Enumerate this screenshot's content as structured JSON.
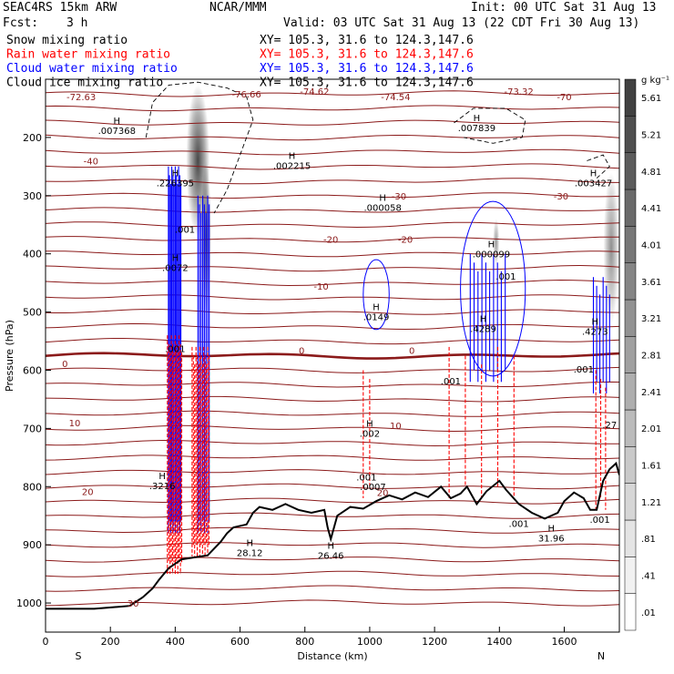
{
  "header": {
    "model": "SEAC4RS 15km ARW",
    "center": "NCAR/MMM",
    "init": "Init: 00 UTC Sat 31 Aug 13",
    "fcst_label": "Fcst:",
    "fcst_value": "3 h",
    "valid": "Valid: 03 UTC Sat 31 Aug 13 (22 CDT Fri 30 Aug 13)",
    "legend": [
      {
        "name": "Snow mixing ratio",
        "color": "#000000",
        "xy": "XY= 105.3, 31.6 to 124.3,147.6"
      },
      {
        "name": "Rain water mixing ratio",
        "color": "#ff0000",
        "xy": "XY= 105.3, 31.6 to 124.3,147.6"
      },
      {
        "name": "Cloud water mixing ratio",
        "color": "#0000ff",
        "xy": "XY= 105.3, 31.6 to 124.3,147.6"
      },
      {
        "name": "Cloud ice mixing ratio",
        "color": "#000000",
        "xy": "XY= 105.3, 31.6 to 124.3,147.6"
      }
    ]
  },
  "chart_data": {
    "type": "cross-section",
    "xlabel": "Distance (km)",
    "ylabel": "Pressure (hPa)",
    "xlim": [
      0,
      1770
    ],
    "ylim": [
      1050,
      100
    ],
    "x_ticks": [
      0,
      200,
      400,
      600,
      800,
      1000,
      1200,
      1400,
      1600
    ],
    "y_ticks": [
      200,
      300,
      400,
      500,
      600,
      700,
      800,
      900,
      1000
    ],
    "x_end_labels": {
      "left": "S",
      "right": "N"
    },
    "colorbar": {
      "unit": "g kg⁻¹",
      "ticks": [
        ".01",
        ".41",
        ".81",
        "1.21",
        "1.61",
        "2.01",
        "2.41",
        "2.81",
        "3.21",
        "3.61",
        "4.01",
        "4.41",
        "4.81",
        "5.21",
        "5.61"
      ]
    },
    "terrain": [
      [
        0,
        1010
      ],
      [
        150,
        1010
      ],
      [
        260,
        1005
      ],
      [
        300,
        990
      ],
      [
        330,
        975
      ],
      [
        350,
        960
      ],
      [
        380,
        940
      ],
      [
        420,
        925
      ],
      [
        500,
        918
      ],
      [
        540,
        895
      ],
      [
        560,
        880
      ],
      [
        580,
        870
      ],
      [
        620,
        865
      ],
      [
        640,
        845
      ],
      [
        660,
        835
      ],
      [
        700,
        840
      ],
      [
        740,
        830
      ],
      [
        780,
        840
      ],
      [
        820,
        845
      ],
      [
        860,
        840
      ],
      [
        870,
        870
      ],
      [
        880,
        890
      ],
      [
        900,
        850
      ],
      [
        940,
        835
      ],
      [
        980,
        838
      ],
      [
        1020,
        825
      ],
      [
        1060,
        815
      ],
      [
        1100,
        822
      ],
      [
        1140,
        810
      ],
      [
        1180,
        818
      ],
      [
        1220,
        800
      ],
      [
        1250,
        820
      ],
      [
        1280,
        812
      ],
      [
        1300,
        800
      ],
      [
        1330,
        830
      ],
      [
        1360,
        808
      ],
      [
        1400,
        790
      ],
      [
        1420,
        805
      ],
      [
        1460,
        830
      ],
      [
        1500,
        845
      ],
      [
        1540,
        855
      ],
      [
        1580,
        845
      ],
      [
        1600,
        825
      ],
      [
        1630,
        810
      ],
      [
        1660,
        820
      ],
      [
        1680,
        840
      ],
      [
        1700,
        840
      ],
      [
        1720,
        790
      ],
      [
        1740,
        770
      ],
      [
        1760,
        760
      ],
      [
        1770,
        780
      ]
    ],
    "temperature_contours": [
      {
        "label": "30",
        "p": 1005
      },
      {
        "label": "20",
        "p": 810
      },
      {
        "label": "10",
        "p": 690
      },
      {
        "label": "0",
        "p": 566
      },
      {
        "label": "-10",
        "p": 455
      },
      {
        "label": "-20",
        "p": 375
      },
      {
        "label": "-30",
        "p": 300
      },
      {
        "label": "-40",
        "p": 240
      },
      {
        "label": "-70",
        "p": 130
      }
    ],
    "temperature_labels": [
      {
        "text": "-72.63",
        "x": 110,
        "p": 130
      },
      {
        "text": "-76.66",
        "x": 620,
        "p": 125
      },
      {
        "text": "-74.62",
        "x": 830,
        "p": 120
      },
      {
        "text": "-74.54",
        "x": 1080,
        "p": 130
      },
      {
        "text": "-73.32",
        "x": 1460,
        "p": 120
      },
      {
        "text": "-70",
        "x": 1600,
        "p": 130
      },
      {
        "text": "-40",
        "x": 140,
        "p": 240
      },
      {
        "text": "-30",
        "x": 1090,
        "p": 300
      },
      {
        "text": "-30",
        "x": 1590,
        "p": 300
      },
      {
        "text": "-20",
        "x": 880,
        "p": 375
      },
      {
        "text": "-20",
        "x": 1110,
        "p": 375
      },
      {
        "text": "-10",
        "x": 850,
        "p": 455
      },
      {
        "text": "0",
        "x": 60,
        "p": 588
      },
      {
        "text": "0",
        "x": 790,
        "p": 566
      },
      {
        "text": "0",
        "x": 1130,
        "p": 566
      },
      {
        "text": "10",
        "x": 90,
        "p": 690
      },
      {
        "text": "10",
        "x": 1080,
        "p": 695
      },
      {
        "text": "20",
        "x": 130,
        "p": 808
      },
      {
        "text": "20",
        "x": 1040,
        "p": 810
      },
      {
        "text": "30",
        "x": 270,
        "p": 1000
      }
    ],
    "hl_labels": [
      {
        "mark": "H",
        "value": ".007368",
        "x": 220,
        "p": 180
      },
      {
        "mark": "H",
        "value": ".226395",
        "x": 400,
        "p": 270
      },
      {
        "mark": "H",
        "value": ".002215",
        "x": 760,
        "p": 240
      },
      {
        "mark": "H",
        "value": ".000058",
        "x": 1040,
        "p": 312
      },
      {
        "mark": "H",
        "value": ".007839",
        "x": 1330,
        "p": 175
      },
      {
        "mark": "H",
        "value": ".003427",
        "x": 1690,
        "p": 270
      },
      {
        "mark": "H",
        "value": ".000099",
        "x": 1375,
        "p": 392
      },
      {
        "mark": "",
        "value": ".001",
        "x": 430,
        "p": 350
      },
      {
        "mark": "H",
        "value": ".0072",
        "x": 400,
        "p": 415
      },
      {
        "mark": "",
        "value": ".001",
        "x": 1420,
        "p": 430
      },
      {
        "mark": "H",
        "value": ".0149",
        "x": 1020,
        "p": 500
      },
      {
        "mark": "H",
        "value": ".4289",
        "x": 1350,
        "p": 520
      },
      {
        "mark": "H",
        "value": ".4273",
        "x": 1695,
        "p": 525
      },
      {
        "mark": "",
        "value": ".001",
        "x": 1250,
        "p": 610
      },
      {
        "mark": "",
        "value": ".001",
        "x": 1660,
        "p": 590
      },
      {
        "mark": "",
        "value": ".001",
        "x": 400,
        "p": 555
      },
      {
        "mark": "H",
        "value": ".002",
        "x": 1000,
        "p": 700
      },
      {
        "mark": "H",
        "value": ".3216",
        "x": 360,
        "p": 790
      },
      {
        "mark": "",
        "value": ".001",
        "x": 990,
        "p": 775
      },
      {
        "mark": "",
        "value": ".0007",
        "x": 1010,
        "p": 792
      },
      {
        "mark": "",
        "value": ".001",
        "x": 1460,
        "p": 855
      },
      {
        "mark": "H",
        "value": "31.96",
        "x": 1560,
        "p": 880
      },
      {
        "mark": "",
        "value": ".001",
        "x": 1710,
        "p": 848
      },
      {
        "mark": "",
        "value": ".27",
        "x": 1740,
        "p": 685
      },
      {
        "mark": "H",
        "value": "28.12",
        "x": 630,
        "p": 905
      },
      {
        "mark": "H",
        "value": "26.46",
        "x": 880,
        "p": 910
      }
    ],
    "snow_shading": [
      {
        "x": 470,
        "p_top": 110,
        "p_bot": 370,
        "w": 45,
        "peak": 0.9
      },
      {
        "x": 495,
        "p_top": 240,
        "p_bot": 500,
        "w": 20,
        "peak": 0.8
      },
      {
        "x": 1390,
        "p_top": 340,
        "p_bot": 420,
        "w": 12,
        "peak": 0.5
      },
      {
        "x": 1745,
        "p_top": 260,
        "p_bot": 520,
        "w": 30,
        "peak": 0.55
      }
    ]
  }
}
